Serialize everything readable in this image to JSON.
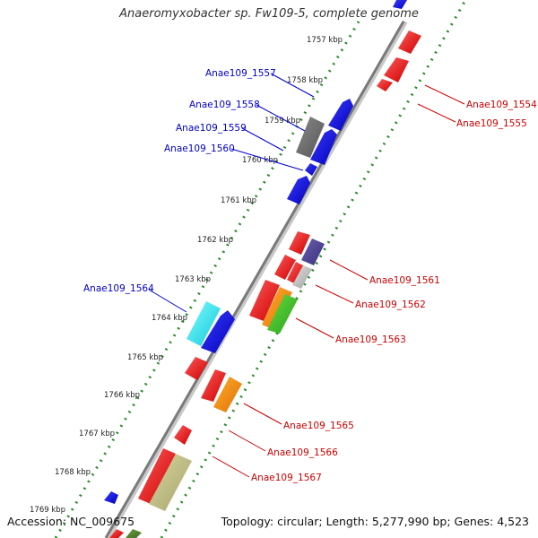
{
  "title": "Anaeromyxobacter sp. Fw109-5, complete genome",
  "accession_text": "Accession: NC_009675",
  "summary_text": "Topology: circular; Length: 5,277,990 bp; Genes: 4,523",
  "colors": {
    "forward_label": "#0000cc",
    "reverse_label": "#cc0000",
    "tick_dots": "#2e8b2e",
    "backbone": "#9a9a9a"
  },
  "ticks": [
    "1757 kbp",
    "1758 kbp",
    "1759 kbp",
    "1760 kbp",
    "1761 kbp",
    "1762 kbp",
    "1763 kbp",
    "1764 kbp",
    "1765 kbp",
    "1766 kbp",
    "1767 kbp",
    "1768 kbp",
    "1769 kbp"
  ],
  "forward_labels": [
    "Anae109_1557",
    "Anae109_1558",
    "Anae109_1559",
    "Anae109_1560",
    "Anae109_1564"
  ],
  "reverse_labels": [
    "Anae109_1554",
    "Anae109_1555",
    "Anae109_1561",
    "Anae109_1562",
    "Anae109_1563",
    "Anae109_1565",
    "Anae109_1566",
    "Anae109_1567"
  ],
  "gene_colors": [
    "red",
    "blue",
    "gray",
    "slate-blue",
    "silver",
    "orange",
    "green",
    "cyan",
    "khaki",
    "olive"
  ]
}
